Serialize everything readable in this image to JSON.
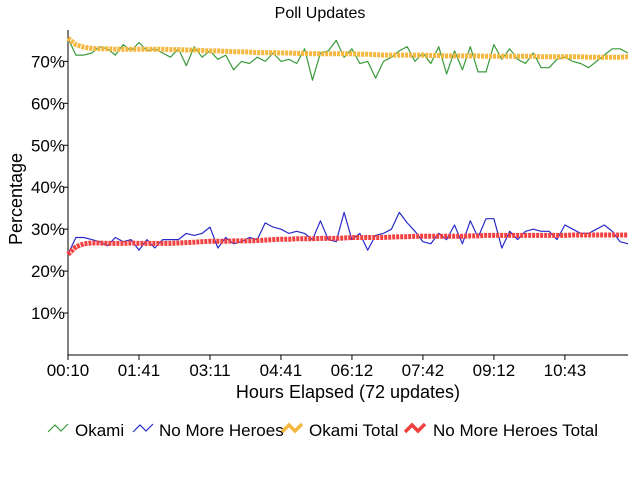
{
  "chart_data": {
    "type": "line",
    "title": "Poll Updates",
    "xlabel": "Hours Elapsed (72 updates)",
    "ylabel": "Percentage",
    "ylim": [
      0,
      77
    ],
    "y_ticks": [
      "10%",
      "20%",
      "30%",
      "40%",
      "50%",
      "60%",
      "70%"
    ],
    "y_tick_values": [
      10,
      20,
      30,
      40,
      50,
      60,
      70
    ],
    "x_ticks": [
      "00:10",
      "01:41",
      "03:11",
      "04:41",
      "06:12",
      "07:42",
      "09:12",
      "10:43"
    ],
    "x_tick_index": [
      0,
      9,
      18,
      27,
      36,
      45,
      54,
      63
    ],
    "update_count": 72,
    "grid": false,
    "legend_position": "bottom",
    "series": [
      {
        "name": "Okami",
        "color": "#3a9a3a",
        "values": [
          75.5,
          71.5,
          71.5,
          72.0,
          73.5,
          73.0,
          71.5,
          74.0,
          72.5,
          74.5,
          72.5,
          73.0,
          72.0,
          71.0,
          73.0,
          69.0,
          73.5,
          71.0,
          72.5,
          70.5,
          71.5,
          68.0,
          70.0,
          69.5,
          71.0,
          70.0,
          72.0,
          70.0,
          70.5,
          69.5,
          73.0,
          65.5,
          72.0,
          72.5,
          75.0,
          71.0,
          73.0,
          69.5,
          70.0,
          66.0,
          70.0,
          71.0,
          72.5,
          73.5,
          70.0,
          72.0,
          69.5,
          73.5,
          67.0,
          72.5,
          68.0,
          73.5,
          67.5,
          67.5,
          74.0,
          70.5,
          73.0,
          70.5,
          69.5,
          72.0,
          68.5,
          68.5,
          70.5,
          71.0,
          70.0,
          69.5,
          68.5,
          70.0,
          71.5,
          73.0,
          73.0,
          72.0
        ]
      },
      {
        "name": "No More Heroes",
        "color": "#2a2acc",
        "values": [
          24.0,
          28.0,
          28.0,
          27.5,
          27.0,
          26.0,
          28.0,
          27.0,
          27.5,
          25.0,
          27.5,
          25.5,
          27.5,
          27.5,
          27.5,
          29.0,
          28.5,
          29.0,
          30.5,
          25.5,
          28.0,
          26.5,
          27.0,
          28.0,
          27.5,
          31.5,
          30.5,
          30.0,
          29.0,
          29.5,
          29.0,
          27.5,
          32.0,
          27.5,
          27.0,
          34.0,
          27.5,
          29.0,
          25.0,
          28.5,
          29.0,
          30.0,
          34.0,
          31.5,
          29.5,
          27.0,
          26.5,
          29.0,
          27.5,
          31.0,
          26.5,
          32.0,
          28.0,
          32.5,
          32.5,
          25.5,
          29.5,
          27.5,
          29.5,
          30.0,
          29.5,
          29.5,
          27.5,
          31.0,
          30.0,
          29.0,
          29.0,
          30.0,
          31.0,
          29.5,
          27.0,
          26.5
        ]
      },
      {
        "name": "Okami Total",
        "color": "#f4b840",
        "values": [
          75.5,
          74.0,
          73.4,
          73.1,
          73.0,
          73.0,
          72.9,
          72.9,
          72.9,
          72.9,
          72.9,
          72.9,
          72.9,
          72.8,
          72.8,
          72.7,
          72.7,
          72.6,
          72.5,
          72.5,
          72.4,
          72.3,
          72.3,
          72.2,
          72.1,
          72.1,
          72.1,
          72.0,
          72.0,
          71.9,
          71.9,
          71.8,
          71.8,
          71.8,
          71.8,
          71.8,
          71.8,
          71.7,
          71.7,
          71.6,
          71.5,
          71.5,
          71.5,
          71.5,
          71.5,
          71.5,
          71.4,
          71.4,
          71.3,
          71.3,
          71.3,
          71.3,
          71.3,
          71.2,
          71.2,
          71.2,
          71.2,
          71.2,
          71.2,
          71.2,
          71.1,
          71.1,
          71.1,
          71.1,
          71.1,
          71.1,
          71.0,
          71.0,
          71.0,
          71.0,
          71.0,
          71.1
        ]
      },
      {
        "name": "No More Heroes Total",
        "color": "#f04040",
        "values": [
          24.0,
          25.8,
          26.5,
          26.7,
          26.7,
          26.6,
          26.6,
          26.6,
          26.7,
          26.6,
          26.6,
          26.6,
          26.6,
          26.6,
          26.7,
          26.8,
          26.9,
          27.0,
          27.1,
          27.1,
          27.1,
          27.2,
          27.2,
          27.2,
          27.3,
          27.4,
          27.5,
          27.6,
          27.6,
          27.7,
          27.7,
          27.7,
          27.8,
          27.8,
          27.8,
          27.9,
          28.0,
          28.0,
          28.0,
          28.0,
          28.0,
          28.1,
          28.2,
          28.2,
          28.3,
          28.3,
          28.3,
          28.3,
          28.3,
          28.3,
          28.3,
          28.4,
          28.4,
          28.5,
          28.5,
          28.5,
          28.5,
          28.5,
          28.5,
          28.5,
          28.5,
          28.5,
          28.5,
          28.5,
          28.6,
          28.6,
          28.6,
          28.6,
          28.6,
          28.6,
          28.6,
          28.6
        ]
      }
    ]
  }
}
